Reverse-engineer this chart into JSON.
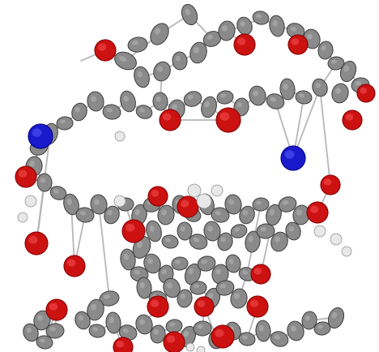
{
  "figsize": [
    4.68,
    4.34
  ],
  "dpi": 100,
  "background_color": "#ffffff"
}
